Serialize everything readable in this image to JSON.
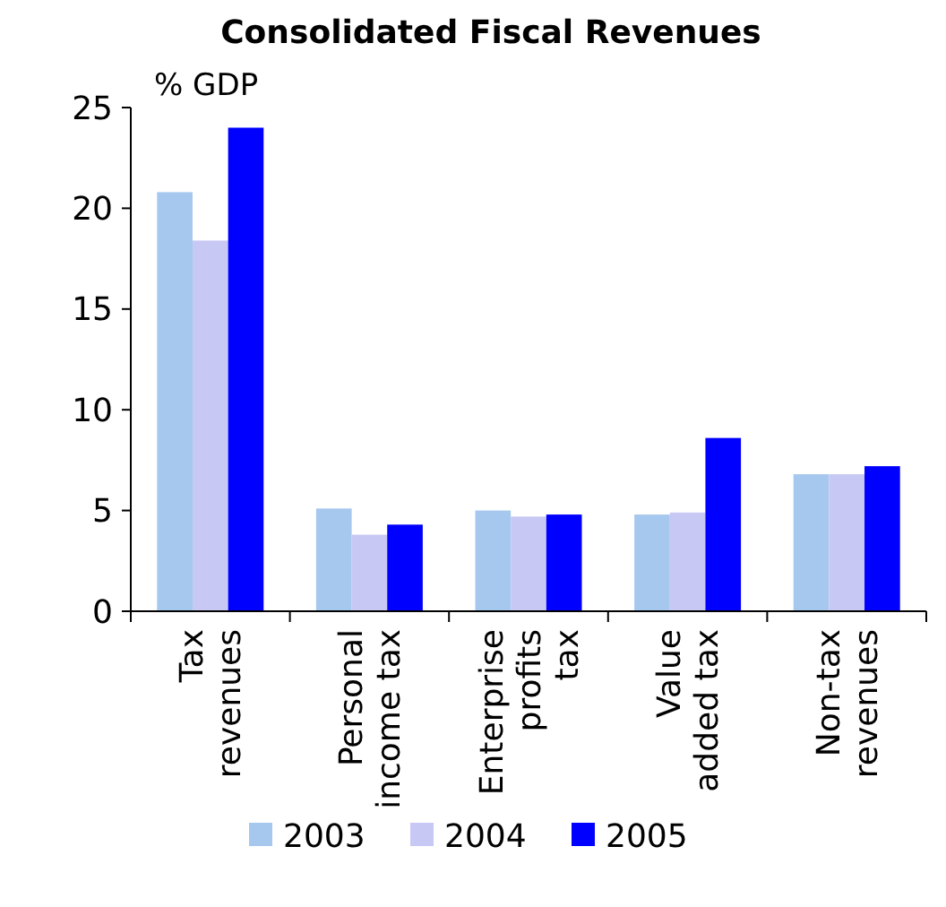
{
  "chart_data": {
    "type": "bar",
    "title": "Consolidated Fiscal Revenues",
    "ylabel": "% GDP",
    "categories": [
      "Tax revenues",
      "Personal income tax",
      "Enterprise profits tax",
      "Value added tax",
      "Non-tax revenues"
    ],
    "series": [
      {
        "name": "2003",
        "color": "#a6c8ee",
        "values": [
          20.8,
          5.1,
          5.0,
          4.8,
          6.8
        ]
      },
      {
        "name": "2004",
        "color": "#c8c8f4",
        "values": [
          18.4,
          3.8,
          4.7,
          4.9,
          6.8
        ]
      },
      {
        "name": "2005",
        "color": "#0000ff",
        "values": [
          24.0,
          4.3,
          4.8,
          8.6,
          7.2
        ]
      }
    ],
    "ylim": [
      0,
      25
    ],
    "yticks": [
      0,
      5,
      10,
      15,
      20,
      25
    ],
    "grid": false,
    "legend": "bottom"
  }
}
